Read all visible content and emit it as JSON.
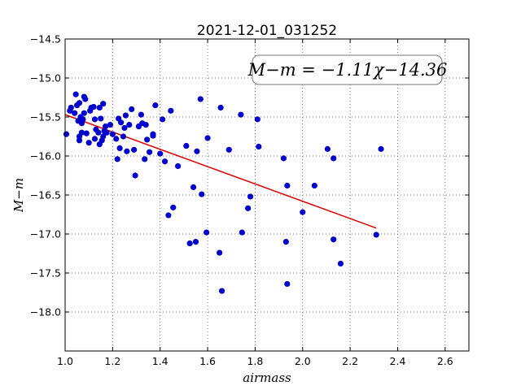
{
  "chart_data": {
    "type": "scatter",
    "title": "2021-12-01_031252",
    "xlabel": "airmass",
    "ylabel": "M−m",
    "xlim": [
      1.0,
      2.7
    ],
    "ylim": [
      -18.5,
      -14.5
    ],
    "y_inverted": true,
    "grid": true,
    "x_ticks": [
      "1.0",
      "1.2",
      "1.4",
      "1.6",
      "1.8",
      "2.0",
      "2.2",
      "2.4",
      "2.6"
    ],
    "y_ticks": [
      "−14.5",
      "−15.0",
      "−15.5",
      "−16.0",
      "−16.5",
      "−17.0",
      "−17.5",
      "−18.0"
    ],
    "x_tick_values": [
      1.0,
      1.2,
      1.4,
      1.6,
      1.8,
      2.0,
      2.2,
      2.4,
      2.6
    ],
    "y_tick_values": [
      -14.5,
      -15.0,
      -15.5,
      -16.0,
      -16.5,
      -17.0,
      -17.5,
      -18.0
    ],
    "annotation": "M−m = −1.11χ−14.36",
    "annotation_placement": "top-right",
    "fit": {
      "slope": -1.11,
      "intercept": -14.36,
      "x_range": [
        1.0,
        2.31
      ]
    },
    "series": [
      {
        "marker_color": "#0000cc",
        "points": [
          [
            1.005,
            -15.72
          ],
          [
            1.02,
            -15.42
          ],
          [
            1.025,
            -15.38
          ],
          [
            1.04,
            -15.45
          ],
          [
            1.045,
            -15.21
          ],
          [
            1.05,
            -15.35
          ],
          [
            1.055,
            -15.55
          ],
          [
            1.06,
            -15.32
          ],
          [
            1.065,
            -15.5
          ],
          [
            1.07,
            -15.58
          ],
          [
            1.06,
            -15.75
          ],
          [
            1.06,
            -15.8
          ],
          [
            1.07,
            -15.7
          ],
          [
            1.075,
            -15.53
          ],
          [
            1.08,
            -15.24
          ],
          [
            1.085,
            -15.27
          ],
          [
            1.08,
            -15.45
          ],
          [
            1.09,
            -15.71
          ],
          [
            1.1,
            -15.83
          ],
          [
            1.105,
            -15.42
          ],
          [
            1.11,
            -15.38
          ],
          [
            1.12,
            -15.37
          ],
          [
            1.125,
            -15.53
          ],
          [
            1.125,
            -15.78
          ],
          [
            1.13,
            -15.66
          ],
          [
            1.14,
            -15.7
          ],
          [
            1.145,
            -15.38
          ],
          [
            1.145,
            -15.85
          ],
          [
            1.15,
            -15.52
          ],
          [
            1.155,
            -15.8
          ],
          [
            1.16,
            -15.33
          ],
          [
            1.16,
            -15.75
          ],
          [
            1.165,
            -15.68
          ],
          [
            1.17,
            -15.62
          ],
          [
            1.175,
            -15.7
          ],
          [
            1.19,
            -15.6
          ],
          [
            1.2,
            -15.72
          ],
          [
            1.215,
            -15.78
          ],
          [
            1.22,
            -16.04
          ],
          [
            1.225,
            -15.52
          ],
          [
            1.23,
            -15.9
          ],
          [
            1.235,
            -15.57
          ],
          [
            1.245,
            -15.75
          ],
          [
            1.25,
            -15.64
          ],
          [
            1.255,
            -15.48
          ],
          [
            1.26,
            -15.94
          ],
          [
            1.27,
            -15.6
          ],
          [
            1.28,
            -15.4
          ],
          [
            1.29,
            -15.92
          ],
          [
            1.295,
            -16.25
          ],
          [
            1.31,
            -15.62
          ],
          [
            1.32,
            -15.47
          ],
          [
            1.325,
            -15.58
          ],
          [
            1.335,
            -16.04
          ],
          [
            1.34,
            -15.6
          ],
          [
            1.345,
            -15.79
          ],
          [
            1.355,
            -15.95
          ],
          [
            1.37,
            -15.72
          ],
          [
            1.37,
            -15.74
          ],
          [
            1.38,
            -15.35
          ],
          [
            1.4,
            -15.97
          ],
          [
            1.41,
            -15.53
          ],
          [
            1.42,
            -16.07
          ],
          [
            1.435,
            -16.76
          ],
          [
            1.445,
            -15.42
          ],
          [
            1.455,
            -16.66
          ],
          [
            1.475,
            -16.13
          ],
          [
            1.51,
            -15.87
          ],
          [
            1.525,
            -17.12
          ],
          [
            1.54,
            -16.4
          ],
          [
            1.55,
            -17.1
          ],
          [
            1.555,
            -15.94
          ],
          [
            1.57,
            -15.27
          ],
          [
            1.575,
            -16.49
          ],
          [
            1.595,
            -16.98
          ],
          [
            1.6,
            -15.77
          ],
          [
            1.65,
            -17.24
          ],
          [
            1.655,
            -15.38
          ],
          [
            1.66,
            -17.73
          ],
          [
            1.69,
            -15.92
          ],
          [
            1.74,
            -15.47
          ],
          [
            1.745,
            -16.98
          ],
          [
            1.77,
            -16.67
          ],
          [
            1.78,
            -16.52
          ],
          [
            1.81,
            -15.53
          ],
          [
            1.815,
            -15.88
          ],
          [
            1.92,
            -16.03
          ],
          [
            1.93,
            -17.1
          ],
          [
            1.935,
            -17.64
          ],
          [
            1.935,
            -16.38
          ],
          [
            2.0,
            -16.72
          ],
          [
            2.05,
            -16.38
          ],
          [
            2.105,
            -15.91
          ],
          [
            2.13,
            -17.07
          ],
          [
            2.13,
            -16.03
          ],
          [
            2.16,
            -17.38
          ],
          [
            2.31,
            -17.01
          ],
          [
            2.33,
            -15.91
          ]
        ]
      }
    ]
  }
}
